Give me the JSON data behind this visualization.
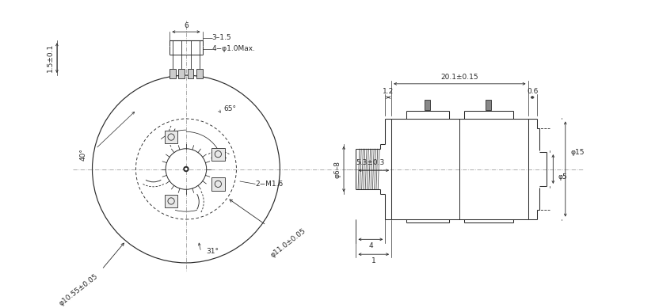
{
  "bg_color": "#ffffff",
  "lc": "#2a2a2a",
  "dc": "#2a2a2a",
  "cc": "#999999",
  "fs": 6.5,
  "fig_w": 8.32,
  "fig_h": 3.89,
  "annotations": {
    "d6": "6",
    "d3_15": "3–1.5",
    "d4_phi1": "4−φ1.0Max.",
    "d65": "65°",
    "d40": "40°",
    "d2m16": "2−M1.6",
    "dphi1055": "φ10.55±0.05",
    "dphi11": "φ11.0±0.05",
    "d31": "31°",
    "d15": "1.5±0.1",
    "d201": "20.1±0.15",
    "d12": "1.2",
    "d06": "0.6",
    "d53": "5.3±0.3",
    "dphi6": "φ6–8",
    "d4": "4",
    "d1": "1",
    "dphi5": "φ5",
    "dphi15": "φ15"
  }
}
